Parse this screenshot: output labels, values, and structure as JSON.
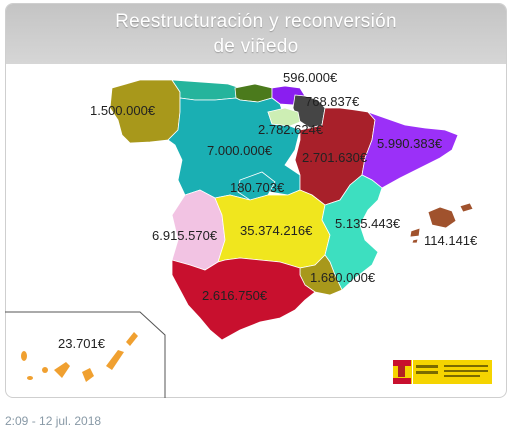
{
  "header": {
    "title_line1": "Reestructuración y reconversión",
    "title_line2": "de viñedo"
  },
  "map": {
    "amounts": {
      "pais_vasco": "596.000€",
      "navarra": "768.837€",
      "galicia": "1.500.000€",
      "la_rioja": "2.782.624€",
      "castilla_leon": "7.000.000€",
      "aragon": "2.701.630€",
      "cataluna": "5.990.383€",
      "madrid": "180.703€",
      "extremadura": "6.915.570€",
      "castilla_la_mancha": "35.374.216€",
      "valencia": "5.135.443€",
      "baleares": "114.141€",
      "murcia": "1.680.000€",
      "andalucia": "2.616.750€",
      "canarias": "23.701€"
    }
  },
  "colors": {
    "galicia": "#a8981b",
    "asturias": "#25b49c",
    "cantabria": "#4b7a1c",
    "pais_vasco": "#8a1ef0",
    "navarra": "#454545",
    "la_rioja": "#cdeeb4",
    "castilla_leon": "#1aafb3",
    "madrid": "#1aafb3",
    "aragon": "#a8202a",
    "cataluna": "#9b30f8",
    "extremadura": "#f2c3e3",
    "castilla_la_mancha": "#f0e61e",
    "valencia": "#3ddfc0",
    "murcia": "#a8981b",
    "andalucia": "#c8102e",
    "baleares": "#a0522d",
    "canarias": "#f0a030"
  },
  "tweet": {
    "timestamp": "2:09 - 12 jul. 2018"
  }
}
